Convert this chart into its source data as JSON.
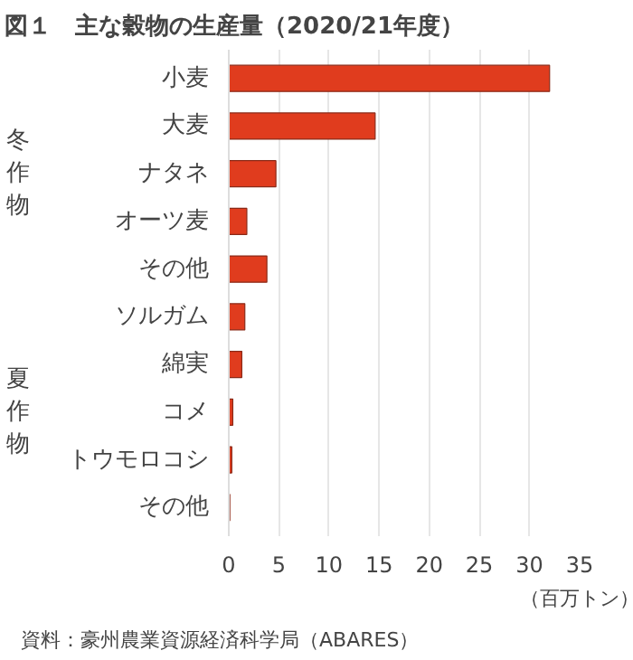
{
  "chart_data": {
    "type": "bar",
    "orientation": "horizontal",
    "title": "図１　主な穀物の生産量（2020/21年度）",
    "categories": [
      "小麦",
      "大麦",
      "ナタネ",
      "オーツ麦",
      "その他",
      "ソルガム",
      "綿実",
      "コメ",
      "トウモロコシ",
      "その他"
    ],
    "values": [
      32,
      14.6,
      4.7,
      1.8,
      3.8,
      1.6,
      1.3,
      0.4,
      0.3,
      0.1
    ],
    "color": "#e03c1e",
    "xlim": [
      0,
      35
    ],
    "xticks": [
      0,
      5,
      10,
      15,
      20,
      25,
      30,
      35
    ],
    "xlabel": "（百万トン）",
    "grid": "x",
    "annotations": [
      "冬作物",
      "夏作物",
      "資料：豪州農業資源経済科学局（ABARES）"
    ]
  }
}
